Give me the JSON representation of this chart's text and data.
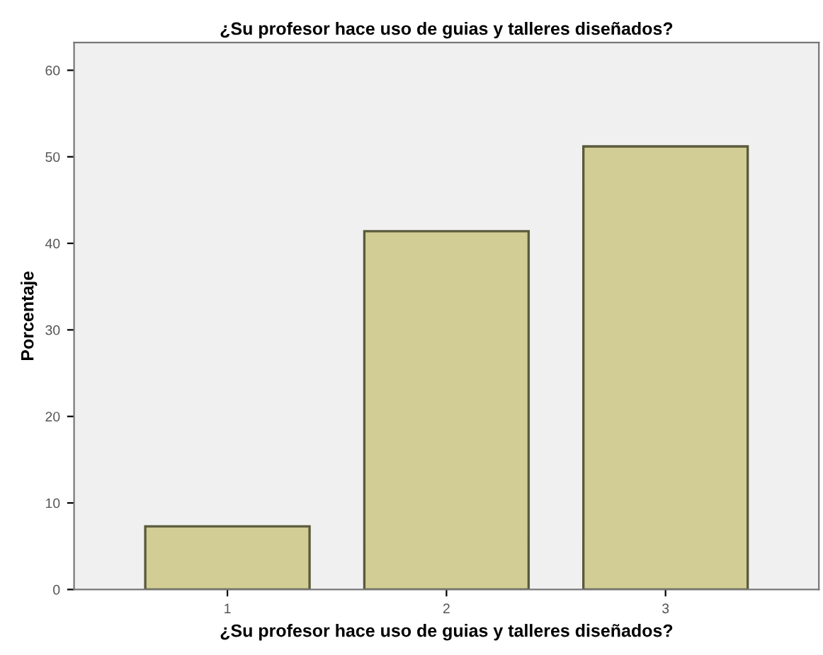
{
  "chart_data": {
    "type": "bar",
    "title": "¿Su profesor hace uso de guias y talleres diseñados?",
    "xlabel": "¿Su profesor hace uso de guias y talleres diseñados?",
    "ylabel": "Porcentaje",
    "categories": [
      "1",
      "2",
      "3"
    ],
    "values": [
      7.3,
      41.4,
      51.2
    ],
    "color": "#d2cd94",
    "ylim": [
      0,
      63.2
    ],
    "yticks": [
      0,
      10,
      20,
      30,
      40,
      50,
      60
    ],
    "grid": false
  }
}
